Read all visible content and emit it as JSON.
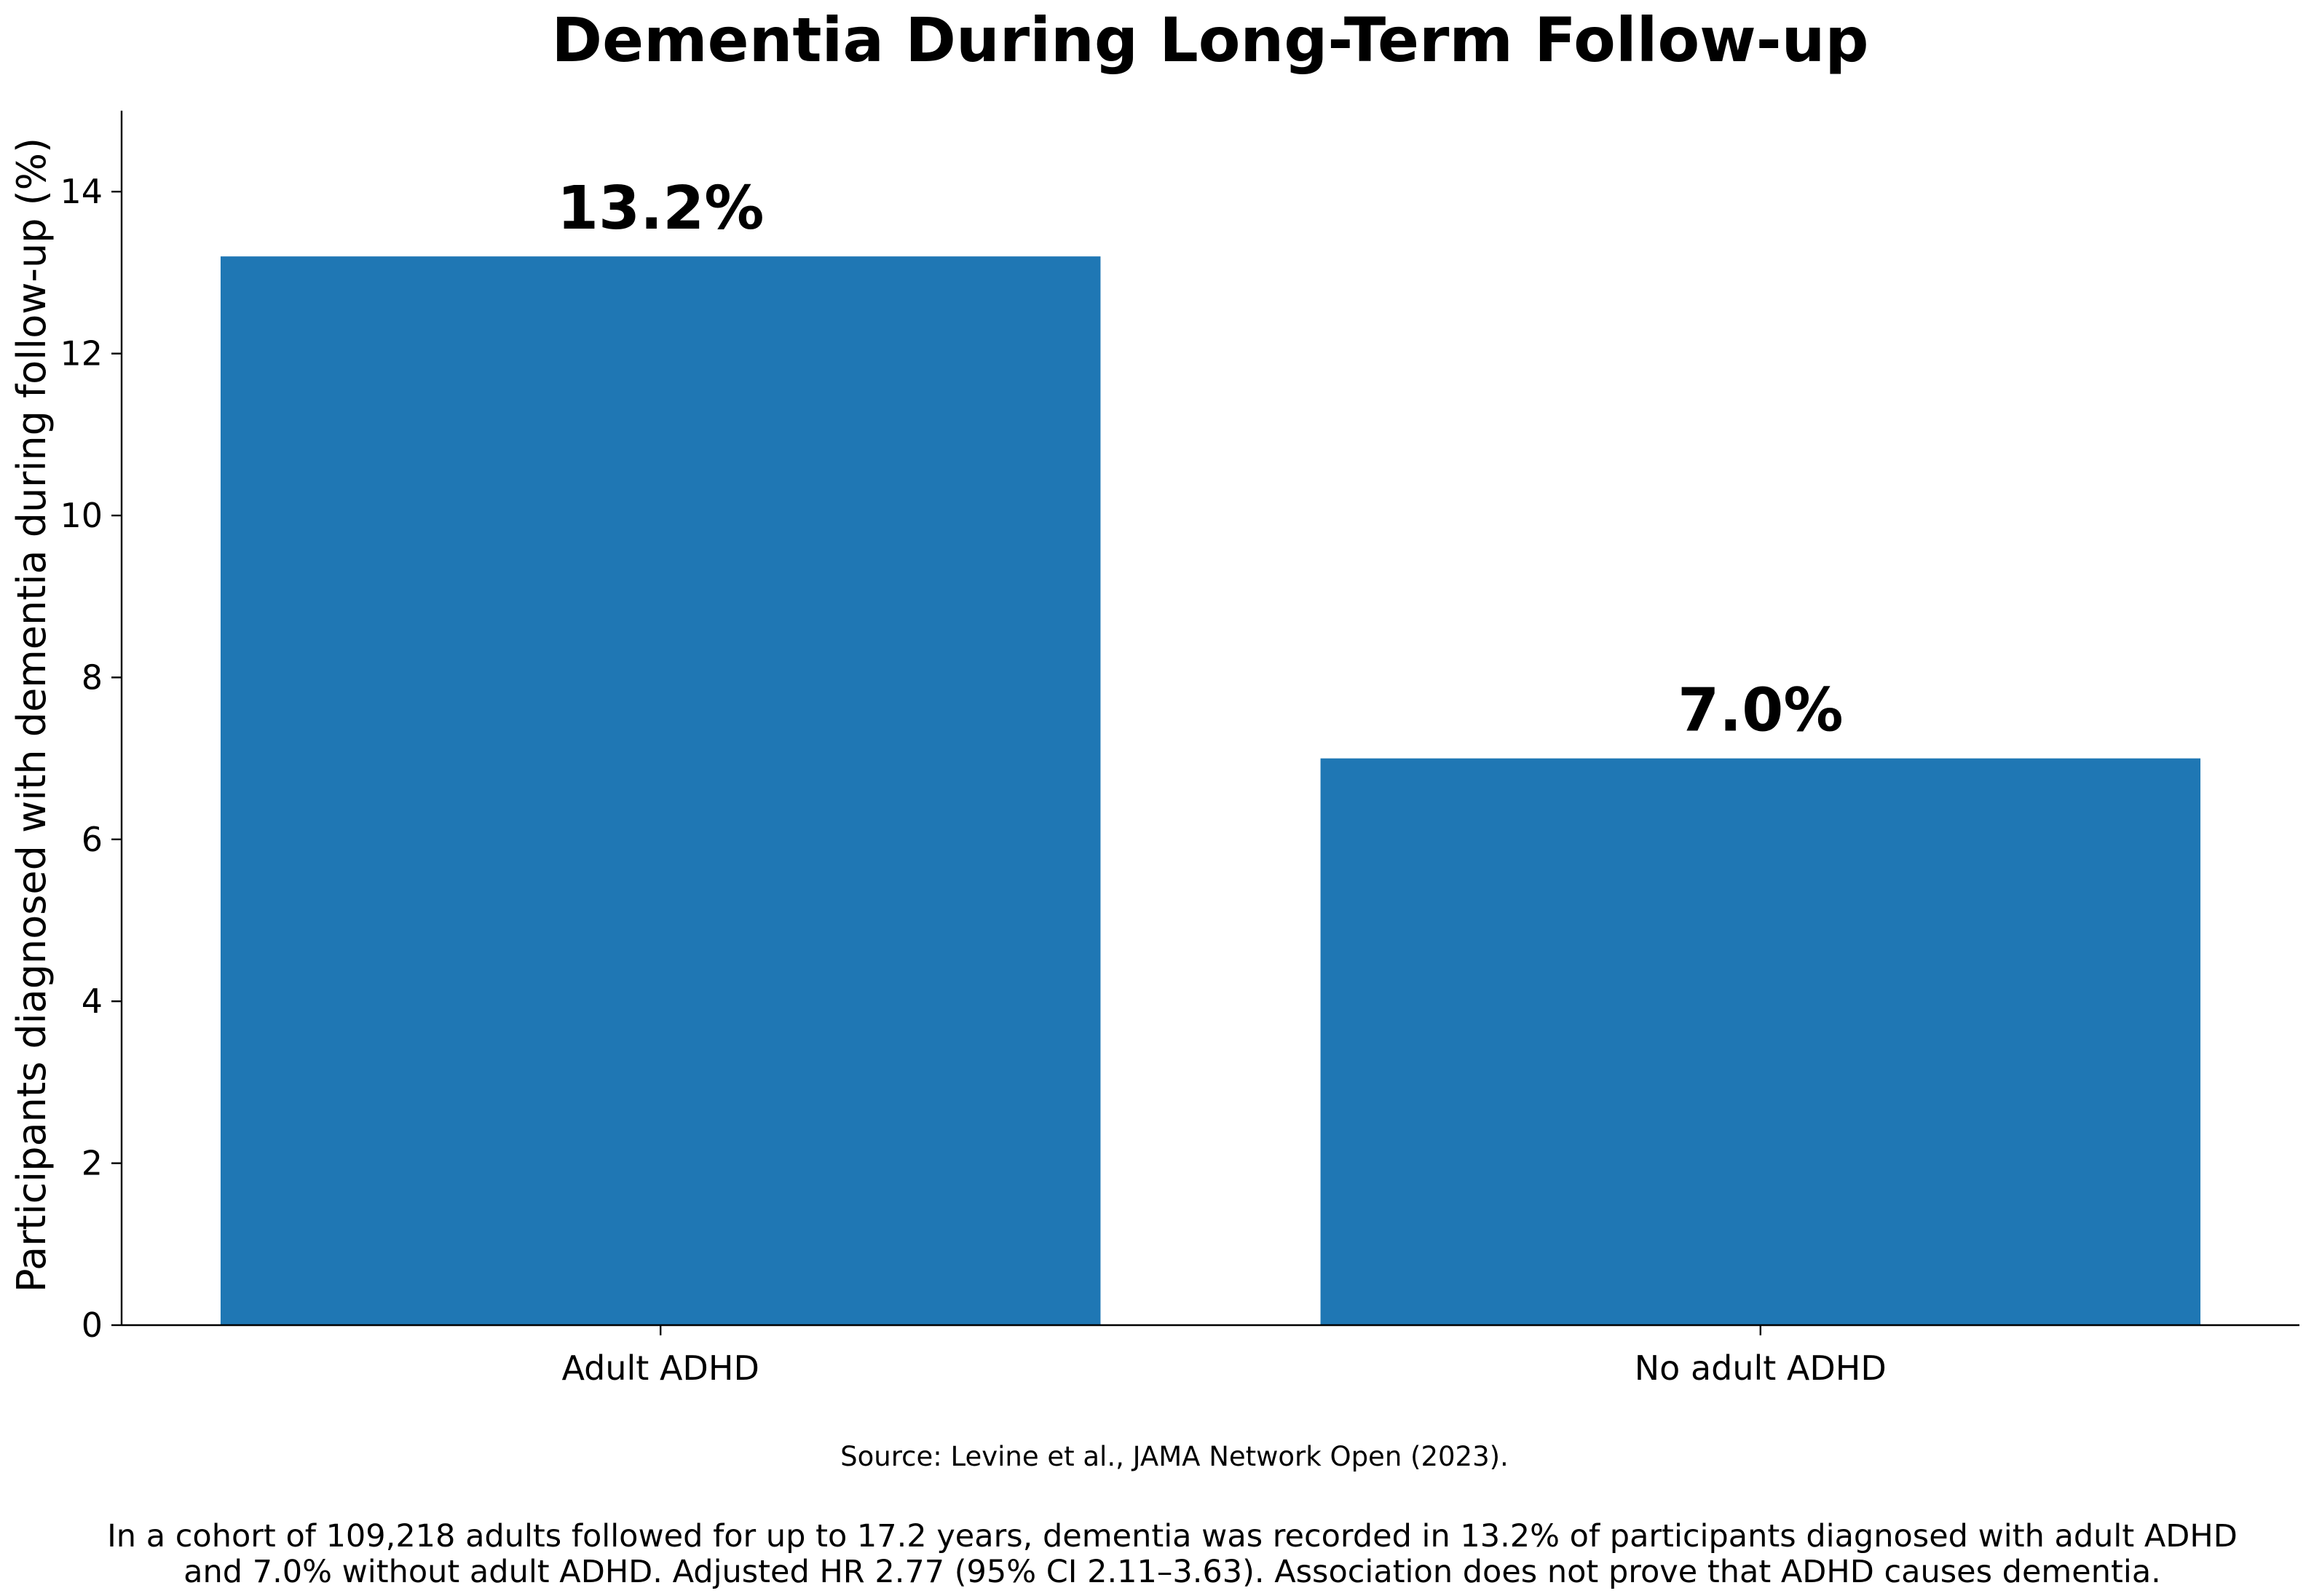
{
  "chart_data": {
    "type": "bar",
    "title": "Dementia During Long-Term Follow-up",
    "xlabel": "",
    "ylabel": "Participants diagnosed with dementia during follow-up (%)",
    "categories": [
      "Adult ADHD",
      "No adult ADHD"
    ],
    "values": [
      13.2,
      7.0
    ],
    "data_labels": [
      "13.2%",
      "7.0%"
    ],
    "ylim": [
      0,
      15
    ],
    "yticks": [
      0,
      2,
      4,
      6,
      8,
      10,
      12,
      14
    ],
    "bar_color": "#1f77b4",
    "grid": false,
    "legend": null,
    "source": "Source: Levine et al., JAMA Network Open (2023).",
    "caption_lines": [
      "In a cohort of 109,218 adults followed for up to 17.2 years, dementia was recorded in 13.2% of participants diagnosed with adult ADHD",
      "and 7.0% without adult ADHD. Adjusted HR 2.77 (95% CI 2.11–3.63). Association does not prove that ADHD causes dementia."
    ]
  }
}
